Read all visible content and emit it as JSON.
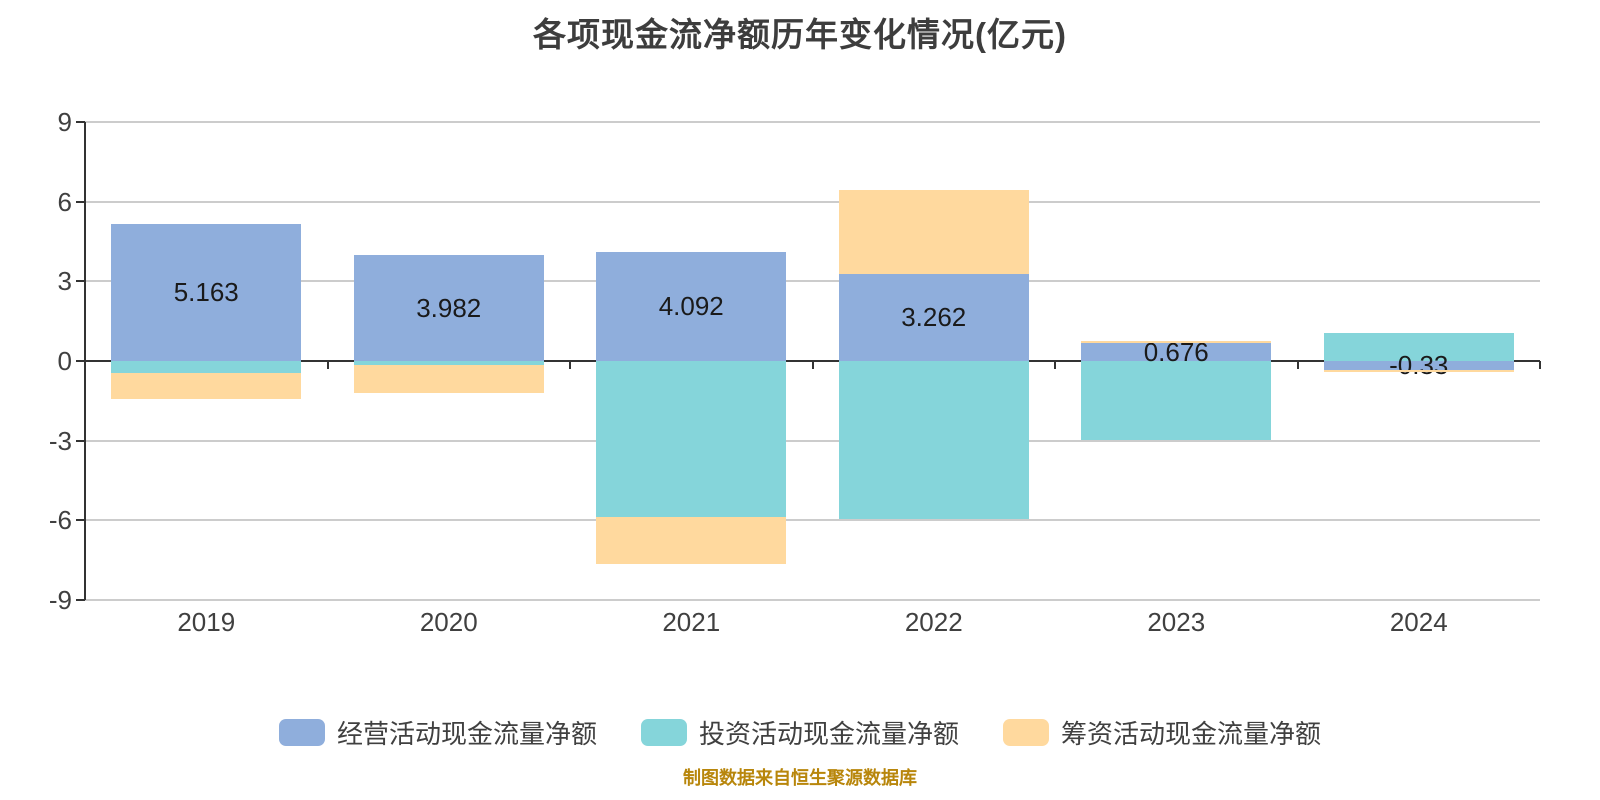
{
  "title": "各项现金流净额历年变化情况(亿元)",
  "footer": "制图数据来自恒生聚源数据库",
  "colors": {
    "title_text": "#3D3D3D",
    "axis_text": "#404040",
    "axis_line": "#333333",
    "gridline": "#CCCCCC",
    "data_label": "#1A1A1A",
    "footer_text": "#B8860B",
    "background": "#FFFFFF"
  },
  "chart_data": {
    "type": "bar",
    "stacked": true,
    "title": "各项现金流净额历年变化情况(亿元)",
    "unit": "亿元",
    "categories": [
      "2019",
      "2020",
      "2021",
      "2022",
      "2023",
      "2024"
    ],
    "series": [
      {
        "name": "经营活动现金流量净额",
        "color": "#8FAEDC",
        "values": [
          5.163,
          3.982,
          4.092,
          3.262,
          0.676,
          -0.33
        ],
        "data_labels": [
          "5.163",
          "3.982",
          "4.092",
          "3.262",
          "0.676",
          "-0.33"
        ]
      },
      {
        "name": "投资活动现金流量净额",
        "color": "#85D5DA",
        "values": [
          -0.45,
          -0.15,
          -5.86,
          -5.96,
          -2.98,
          1.04
        ]
      },
      {
        "name": "筹资活动现金流量净额",
        "color": "#FFD99E",
        "values": [
          -1.0,
          -1.05,
          -1.77,
          3.18,
          0.06,
          -0.09
        ]
      }
    ],
    "ylim": [
      -9,
      9
    ],
    "yticks": [
      9,
      6,
      3,
      0,
      -3,
      -6,
      -9
    ],
    "grid": true,
    "legend_position": "bottom"
  }
}
